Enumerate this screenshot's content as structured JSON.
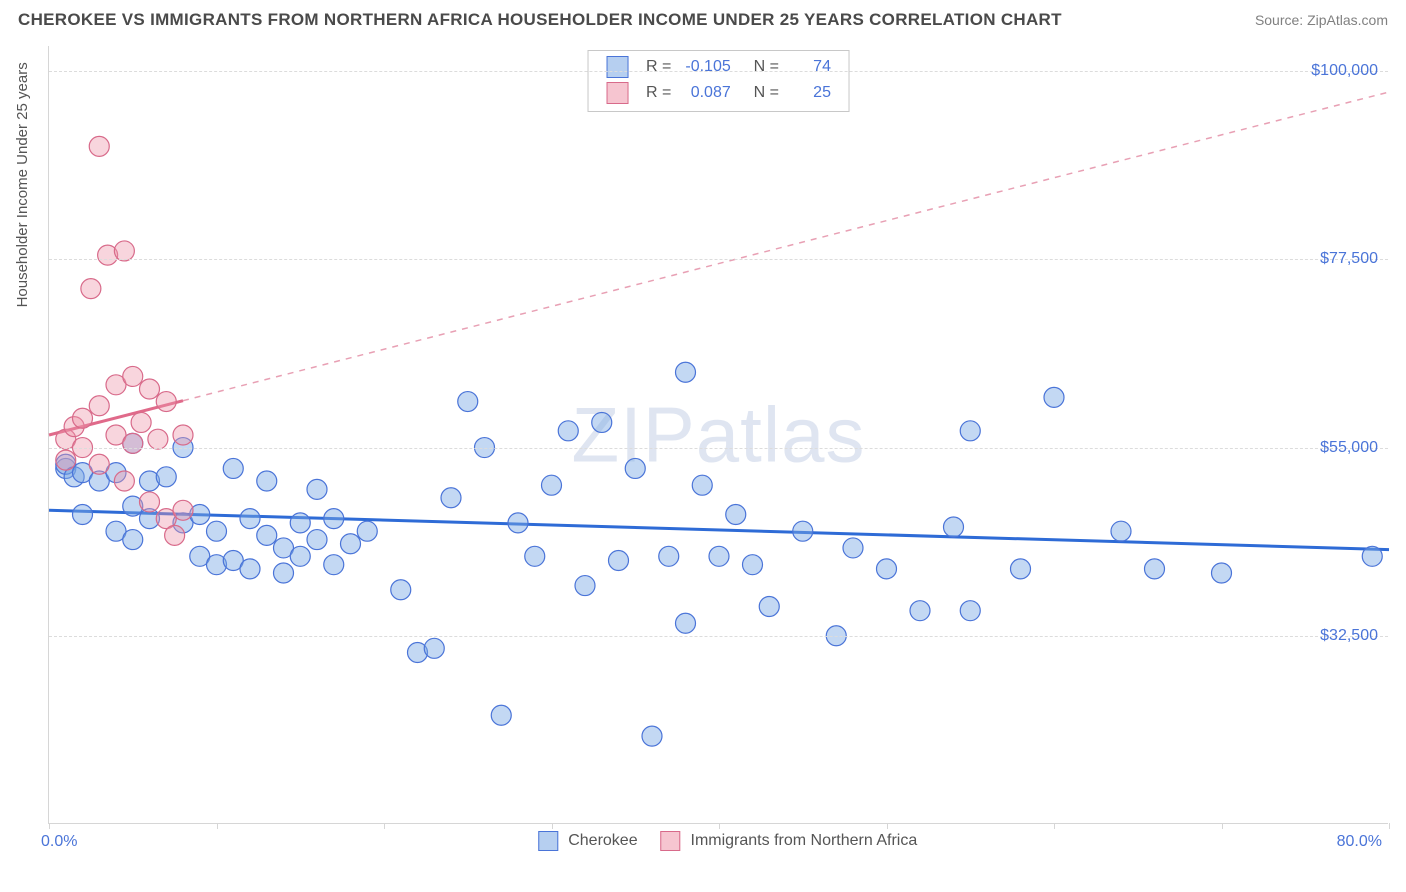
{
  "title": "CHEROKEE VS IMMIGRANTS FROM NORTHERN AFRICA HOUSEHOLDER INCOME UNDER 25 YEARS CORRELATION CHART",
  "source": "Source: ZipAtlas.com",
  "watermark": "ZIPatlas",
  "chart": {
    "type": "scatter",
    "xlim": [
      0,
      80
    ],
    "ylim": [
      10000,
      103000
    ],
    "x_min_label": "0.0%",
    "x_max_label": "80.0%",
    "y_axis_title": "Householder Income Under 25 years",
    "y_ticks": [
      {
        "v": 32500,
        "label": "$32,500"
      },
      {
        "v": 55000,
        "label": "$55,000"
      },
      {
        "v": 77500,
        "label": "$77,500"
      },
      {
        "v": 100000,
        "label": "$100,000"
      }
    ],
    "x_tick_positions": [
      0,
      10,
      20,
      30,
      40,
      50,
      60,
      70,
      80
    ],
    "grid_color": "#dcdcdc",
    "background_color": "#ffffff",
    "marker_radius": 10,
    "series": [
      {
        "name": "Cherokee",
        "color_fill": "rgba(122,168,228,0.45)",
        "color_stroke": "#4a74d8",
        "R": -0.105,
        "N": 74,
        "trend": {
          "x_solid_end": 80,
          "y_start": 47500,
          "y_at_80": 42800
        },
        "points": [
          [
            1,
            52500
          ],
          [
            1,
            53000
          ],
          [
            1.5,
            51500
          ],
          [
            2,
            52000
          ],
          [
            2,
            47000
          ],
          [
            3,
            51000
          ],
          [
            4,
            52000
          ],
          [
            5,
            55500
          ],
          [
            4,
            45000
          ],
          [
            5,
            48000
          ],
          [
            5,
            44000
          ],
          [
            6,
            51000
          ],
          [
            6,
            46500
          ],
          [
            7,
            51500
          ],
          [
            8,
            55000
          ],
          [
            8,
            46000
          ],
          [
            9,
            47000
          ],
          [
            9,
            42000
          ],
          [
            10,
            41000
          ],
          [
            10,
            45000
          ],
          [
            11,
            52500
          ],
          [
            11,
            41500
          ],
          [
            12,
            46500
          ],
          [
            12,
            40500
          ],
          [
            13,
            51000
          ],
          [
            13,
            44500
          ],
          [
            14,
            43000
          ],
          [
            14,
            40000
          ],
          [
            15,
            46000
          ],
          [
            15,
            42000
          ],
          [
            16,
            50000
          ],
          [
            16,
            44000
          ],
          [
            17,
            46500
          ],
          [
            17,
            41000
          ],
          [
            18,
            43500
          ],
          [
            19,
            45000
          ],
          [
            21,
            38000
          ],
          [
            22,
            30500
          ],
          [
            23,
            31000
          ],
          [
            24,
            49000
          ],
          [
            25,
            60500
          ],
          [
            26,
            55000
          ],
          [
            27,
            23000
          ],
          [
            28,
            46000
          ],
          [
            29,
            42000
          ],
          [
            30,
            50500
          ],
          [
            31,
            57000
          ],
          [
            32,
            38500
          ],
          [
            33,
            58000
          ],
          [
            34,
            41500
          ],
          [
            35,
            52500
          ],
          [
            36,
            20500
          ],
          [
            37,
            42000
          ],
          [
            38,
            34000
          ],
          [
            38,
            64000
          ],
          [
            39,
            50500
          ],
          [
            40,
            42000
          ],
          [
            41,
            47000
          ],
          [
            42,
            41000
          ],
          [
            43,
            36000
          ],
          [
            45,
            45000
          ],
          [
            47,
            32500
          ],
          [
            48,
            43000
          ],
          [
            50,
            40500
          ],
          [
            52,
            35500
          ],
          [
            54,
            45500
          ],
          [
            55,
            57000
          ],
          [
            55,
            35500
          ],
          [
            58,
            40500
          ],
          [
            60,
            61000
          ],
          [
            64,
            45000
          ],
          [
            66,
            40500
          ],
          [
            70,
            40000
          ],
          [
            79,
            42000
          ]
        ]
      },
      {
        "name": "Immigrants from Northern Africa",
        "color_fill": "rgba(238,150,170,0.40)",
        "color_stroke": "#d86a8a",
        "R": 0.087,
        "N": 25,
        "trend": {
          "x_solid_end": 8,
          "y_start": 56500,
          "y_at_80": 97500
        },
        "points": [
          [
            1,
            56000
          ],
          [
            1,
            53500
          ],
          [
            1.5,
            57500
          ],
          [
            2,
            55000
          ],
          [
            2,
            58500
          ],
          [
            2.5,
            74000
          ],
          [
            3,
            91000
          ],
          [
            3,
            60000
          ],
          [
            3,
            53000
          ],
          [
            3.5,
            78000
          ],
          [
            4,
            62500
          ],
          [
            4,
            56500
          ],
          [
            4.5,
            78500
          ],
          [
            4.5,
            51000
          ],
          [
            5,
            63500
          ],
          [
            5,
            55500
          ],
          [
            5.5,
            58000
          ],
          [
            6,
            62000
          ],
          [
            6,
            48500
          ],
          [
            6.5,
            56000
          ],
          [
            7,
            60500
          ],
          [
            7,
            46500
          ],
          [
            8,
            47500
          ],
          [
            8,
            56500
          ],
          [
            7.5,
            44500
          ]
        ]
      }
    ]
  },
  "legend_bottom": {
    "series1": "Cherokee",
    "series2": "Immigrants from Northern Africa"
  }
}
